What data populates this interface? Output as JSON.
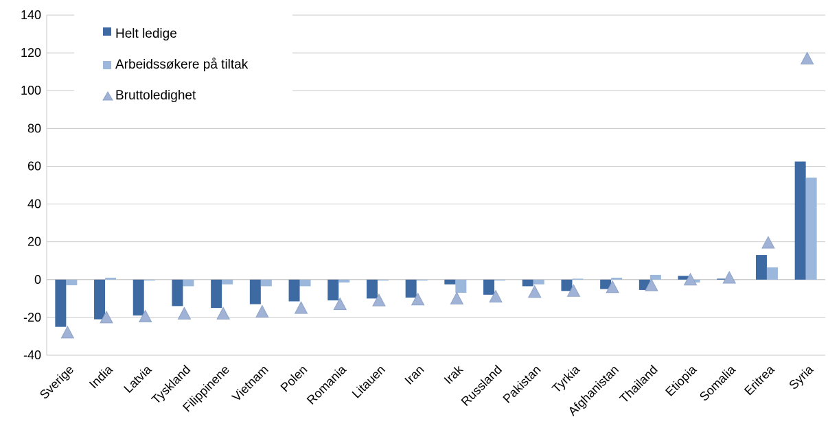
{
  "chart_data": {
    "type": "bar",
    "title": "",
    "xlabel": "",
    "ylabel": "",
    "ylim": [
      -40,
      140
    ],
    "yticks": [
      -40,
      -20,
      0,
      20,
      40,
      60,
      80,
      100,
      120,
      140
    ],
    "grid": true,
    "legend_position": "top-left",
    "categories": [
      "Sverige",
      "India",
      "Latvia",
      "Tyskland",
      "Filippinene",
      "Vietnam",
      "Polen",
      "Romania",
      "Litauen",
      "Iran",
      "Irak",
      "Russland",
      "Pakistan",
      "Tyrkia",
      "Afghanistan",
      "Thailand",
      "Etiopia",
      "Somalia",
      "Eritrea",
      "Syria"
    ],
    "series": [
      {
        "name": "Helt ledige",
        "mark": "bar",
        "color": "#3d6aa3",
        "values": [
          -25,
          -21,
          -19,
          -14,
          -15,
          -13,
          -11.5,
          -11,
          -10,
          -9.5,
          -2.5,
          -8,
          -3.5,
          -6,
          -5,
          -5.5,
          2,
          0.5,
          13,
          62.5
        ]
      },
      {
        "name": "Arbeidssøkere på tiltak",
        "mark": "bar",
        "color": "#9bb7db",
        "values": [
          -3,
          1,
          -0.5,
          -3.5,
          -2.5,
          -3.5,
          -3.5,
          -1.5,
          -0.5,
          -0.5,
          -7,
          -0.5,
          -2.5,
          0.5,
          1,
          2.5,
          -1.5,
          0,
          6.5,
          54
        ]
      },
      {
        "name": "Bruttoledighet",
        "mark": "triangle",
        "color": "#a0b3d6",
        "values": [
          -28,
          -20,
          -19.5,
          -18,
          -18,
          -17,
          -15,
          -13,
          -11,
          -10.5,
          -10,
          -9,
          -6.5,
          -6,
          -4,
          -3,
          0,
          1,
          19.5,
          117
        ]
      }
    ]
  }
}
